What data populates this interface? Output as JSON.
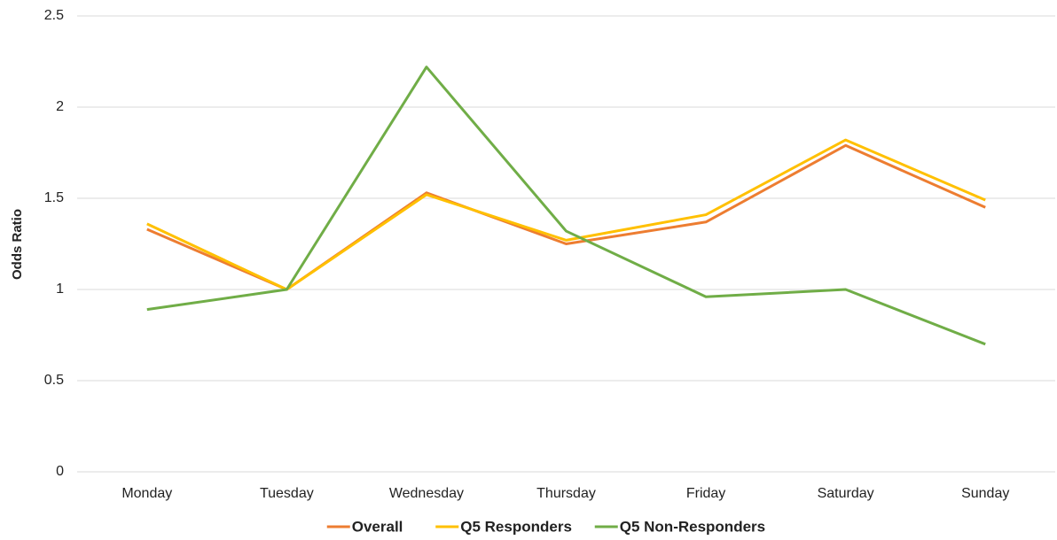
{
  "chart_data": {
    "type": "line",
    "y_label": "Odds Ratio",
    "categories": [
      "Monday",
      "Tuesday",
      "Wednesday",
      "Thursday",
      "Friday",
      "Saturday",
      "Sunday"
    ],
    "series": [
      {
        "name": "Overall",
        "color": "#ed7d31",
        "values": [
          1.33,
          1.0,
          1.53,
          1.25,
          1.37,
          1.79,
          1.45
        ]
      },
      {
        "name": "Q5 Responders",
        "color": "#ffc000",
        "values": [
          1.36,
          1.0,
          1.52,
          1.27,
          1.41,
          1.82,
          1.49
        ]
      },
      {
        "name": "Q5 Non-Responders",
        "color": "#70ad47",
        "values": [
          0.89,
          1.0,
          2.22,
          1.32,
          0.96,
          1.0,
          0.7
        ]
      }
    ],
    "ylim": [
      0,
      2.5
    ],
    "yticks": [
      0,
      0.5,
      1,
      1.5,
      2,
      2.5
    ],
    "grid": true,
    "legend": "bottom"
  }
}
